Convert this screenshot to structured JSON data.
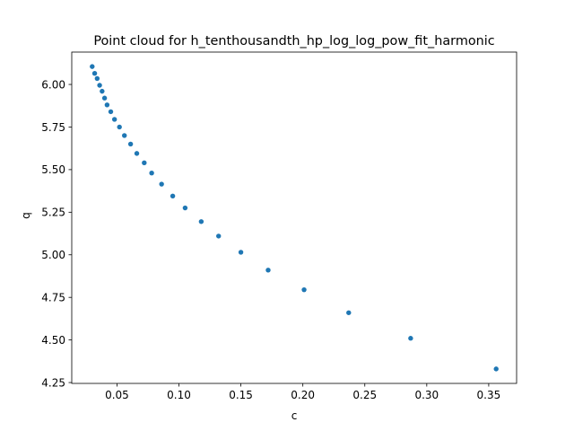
{
  "chart_data": {
    "type": "scatter",
    "title": "Point cloud for h_tenthousandth_hp_log_log_pow_fit_harmonic",
    "xlabel": "c",
    "ylabel": "q",
    "xlim": [
      0.0135,
      0.3725
    ],
    "ylim": [
      4.245,
      6.19
    ],
    "xticks": [
      0.05,
      0.1,
      0.15,
      0.2,
      0.25,
      0.3,
      0.35
    ],
    "xtick_labels": [
      "0.05",
      "0.10",
      "0.15",
      "0.20",
      "0.25",
      "0.30",
      "0.35"
    ],
    "yticks": [
      4.25,
      4.5,
      4.75,
      5.0,
      5.25,
      5.5,
      5.75,
      6.0
    ],
    "ytick_labels": [
      "4.25",
      "4.50",
      "4.75",
      "5.00",
      "5.25",
      "5.50",
      "5.75",
      "6.00"
    ],
    "grid": false,
    "marker_color": "#1f77b4",
    "points": [
      {
        "x": 0.03,
        "y": 6.105
      },
      {
        "x": 0.032,
        "y": 6.065
      },
      {
        "x": 0.034,
        "y": 6.035
      },
      {
        "x": 0.036,
        "y": 5.995
      },
      {
        "x": 0.038,
        "y": 5.96
      },
      {
        "x": 0.04,
        "y": 5.92
      },
      {
        "x": 0.042,
        "y": 5.88
      },
      {
        "x": 0.045,
        "y": 5.84
      },
      {
        "x": 0.048,
        "y": 5.795
      },
      {
        "x": 0.052,
        "y": 5.75
      },
      {
        "x": 0.056,
        "y": 5.7
      },
      {
        "x": 0.061,
        "y": 5.65
      },
      {
        "x": 0.066,
        "y": 5.595
      },
      {
        "x": 0.072,
        "y": 5.54
      },
      {
        "x": 0.078,
        "y": 5.48
      },
      {
        "x": 0.086,
        "y": 5.415
      },
      {
        "x": 0.095,
        "y": 5.345
      },
      {
        "x": 0.105,
        "y": 5.275
      },
      {
        "x": 0.118,
        "y": 5.195
      },
      {
        "x": 0.132,
        "y": 5.11
      },
      {
        "x": 0.15,
        "y": 5.015
      },
      {
        "x": 0.172,
        "y": 4.91
      },
      {
        "x": 0.201,
        "y": 4.795
      },
      {
        "x": 0.237,
        "y": 4.66
      },
      {
        "x": 0.287,
        "y": 4.51
      },
      {
        "x": 0.356,
        "y": 4.33
      }
    ]
  }
}
